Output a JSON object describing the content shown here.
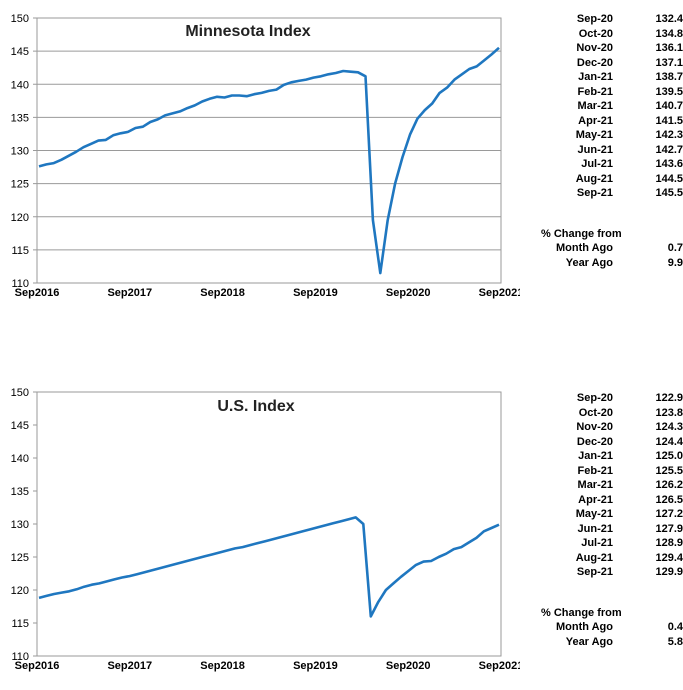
{
  "chart_data": [
    {
      "type": "line",
      "title": "Minnesota Index",
      "xlabel": "",
      "ylabel": "",
      "ylim": [
        110,
        150
      ],
      "yticks": [
        110,
        115,
        120,
        125,
        130,
        135,
        140,
        145,
        150
      ],
      "xtick_labels": [
        "Sep2016",
        "Sep2017",
        "Sep2018",
        "Sep2019",
        "Sep2020",
        "Sep2021"
      ],
      "grid": true,
      "series": [
        {
          "color": "#1f77c0",
          "values": [
            127.6,
            127.9,
            128.1,
            128.6,
            129.2,
            129.8,
            130.5,
            131.0,
            131.5,
            131.6,
            132.3,
            132.6,
            132.8,
            133.4,
            133.6,
            134.3,
            134.7,
            135.3,
            135.6,
            135.9,
            136.4,
            136.8,
            137.4,
            137.8,
            138.1,
            138.0,
            138.3,
            138.3,
            138.2,
            138.5,
            138.7,
            139.0,
            139.2,
            139.9,
            140.3,
            140.5,
            140.7,
            141.0,
            141.2,
            141.5,
            141.7,
            142.0,
            141.9,
            141.8,
            141.2,
            119.5,
            111.5,
            119.5,
            125.0,
            129.0,
            132.4,
            134.8,
            136.1,
            137.1,
            138.7,
            139.5,
            140.7,
            141.5,
            142.3,
            142.7,
            143.6,
            144.5,
            145.5
          ]
        }
      ],
      "table": [
        {
          "month": "Sep-20",
          "value": "132.4"
        },
        {
          "month": "Oct-20",
          "value": "134.8"
        },
        {
          "month": "Nov-20",
          "value": "136.1"
        },
        {
          "month": "Dec-20",
          "value": "137.1"
        },
        {
          "month": "Jan-21",
          "value": "138.7"
        },
        {
          "month": "Feb-21",
          "value": "139.5"
        },
        {
          "month": "Mar-21",
          "value": "140.7"
        },
        {
          "month": "Apr-21",
          "value": "141.5"
        },
        {
          "month": "May-21",
          "value": "142.3"
        },
        {
          "month": "Jun-21",
          "value": "142.7"
        },
        {
          "month": "Jul-21",
          "value": "143.6"
        },
        {
          "month": "Aug-21",
          "value": "144.5"
        },
        {
          "month": "Sep-21",
          "value": "145.5"
        }
      ],
      "change_heading": "% Change from",
      "changes": [
        {
          "label": "Month Ago",
          "value": "0.7"
        },
        {
          "label": "Year Ago",
          "value": "9.9"
        }
      ]
    },
    {
      "type": "line",
      "title": "U.S. Index",
      "xlabel": "",
      "ylabel": "",
      "ylim": [
        110,
        150
      ],
      "yticks": [
        110,
        115,
        120,
        125,
        130,
        135,
        140,
        145,
        150
      ],
      "xtick_labels": [
        "Sep2016",
        "Sep2017",
        "Sep2018",
        "Sep2019",
        "Sep2020",
        "Sep2021"
      ],
      "grid": false,
      "series": [
        {
          "color": "#1f77c0",
          "values": [
            118.8,
            119.1,
            119.4,
            119.6,
            119.8,
            120.1,
            120.5,
            120.8,
            121.0,
            121.3,
            121.6,
            121.9,
            122.1,
            122.4,
            122.7,
            123.0,
            123.3,
            123.6,
            123.9,
            124.2,
            124.5,
            124.8,
            125.1,
            125.4,
            125.7,
            126.0,
            126.3,
            126.5,
            126.8,
            127.1,
            127.4,
            127.7,
            128.0,
            128.3,
            128.6,
            128.9,
            129.2,
            129.5,
            129.8,
            130.1,
            130.4,
            130.7,
            131.0,
            130.0,
            116.0,
            118.2,
            120.0,
            121.0,
            122.0,
            122.9,
            123.8,
            124.3,
            124.4,
            125.0,
            125.5,
            126.2,
            126.5,
            127.2,
            127.9,
            128.9,
            129.4,
            129.9
          ]
        }
      ],
      "table": [
        {
          "month": "Sep-20",
          "value": "122.9"
        },
        {
          "month": "Oct-20",
          "value": "123.8"
        },
        {
          "month": "Nov-20",
          "value": "124.3"
        },
        {
          "month": "Dec-20",
          "value": "124.4"
        },
        {
          "month": "Jan-21",
          "value": "125.0"
        },
        {
          "month": "Feb-21",
          "value": "125.5"
        },
        {
          "month": "Mar-21",
          "value": "126.2"
        },
        {
          "month": "Apr-21",
          "value": "126.5"
        },
        {
          "month": "May-21",
          "value": "127.2"
        },
        {
          "month": "Jun-21",
          "value": "127.9"
        },
        {
          "month": "Jul-21",
          "value": "128.9"
        },
        {
          "month": "Aug-21",
          "value": "129.4"
        },
        {
          "month": "Sep-21",
          "value": "129.9"
        }
      ],
      "change_heading": "% Change from",
      "changes": [
        {
          "label": "Month Ago",
          "value": "0.4"
        },
        {
          "label": "Year Ago",
          "value": "5.8"
        }
      ]
    }
  ]
}
